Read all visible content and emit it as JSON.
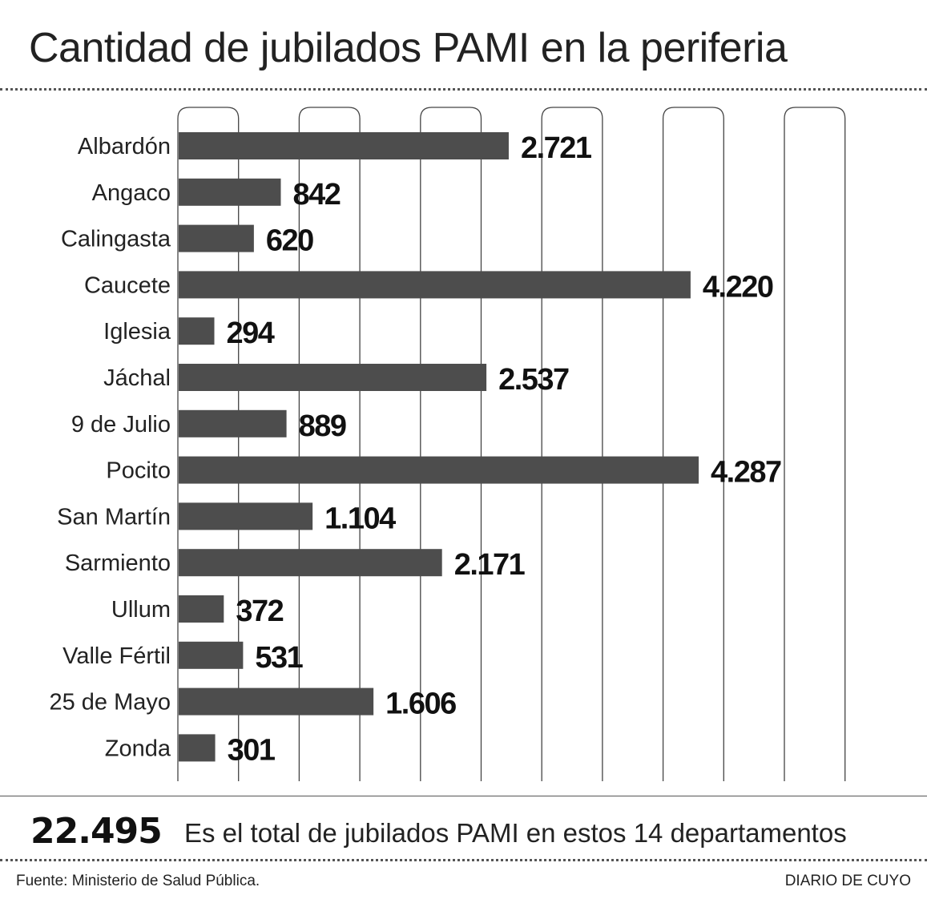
{
  "title": "Cantidad de jubilados PAMI en la periferia",
  "chart_data": {
    "type": "bar",
    "orientation": "horizontal",
    "title": "Cantidad de jubilados PAMI en la periferia",
    "xlabel": "",
    "ylabel": "",
    "xlim": [
      0,
      5500
    ],
    "grid": true,
    "bar_color": "#4d4d4d",
    "categories": [
      "Albardón",
      "Angaco",
      "Calingasta",
      "Caucete",
      "Iglesia",
      "Jáchal",
      "9 de Julio",
      "Pocito",
      "San Martín",
      "Sarmiento",
      "Ullum",
      "Valle Fértil",
      "25 de Mayo",
      "Zonda"
    ],
    "values": [
      2721,
      842,
      620,
      4220,
      294,
      2537,
      889,
      4287,
      1104,
      2171,
      372,
      531,
      1606,
      301
    ],
    "value_labels": [
      "2.721",
      "842",
      "620",
      "4.220",
      "294",
      "2.537",
      "889",
      "4.287",
      "1.104",
      "2.171",
      "372",
      "531",
      "1.606",
      "301"
    ]
  },
  "summary": {
    "total": "22.495",
    "text": "Es el total de jubilados PAMI en estos 14 departamentos"
  },
  "footer": {
    "source": "Fuente: Ministerio de Salud Pública.",
    "credit": "DIARIO DE CUYO"
  }
}
